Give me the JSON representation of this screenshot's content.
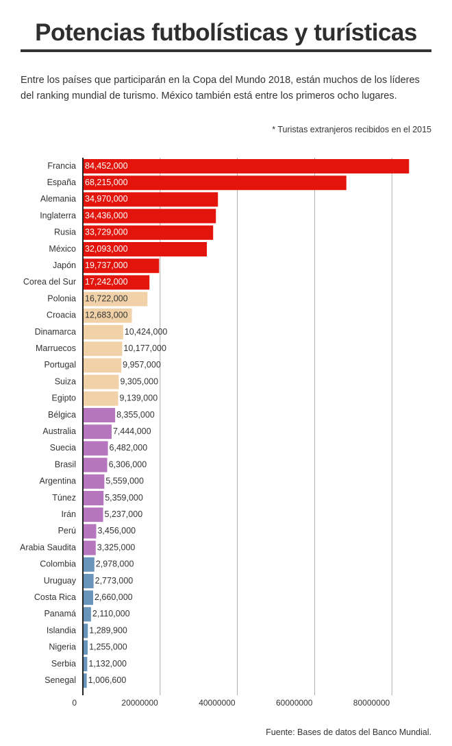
{
  "header": {
    "title": "Potencias futbolísticas y turísticas",
    "intro": "Entre los países que participarán en la Copa del Mundo 2018, están muchos de los líderes del ranking mundial de turismo. México también está entre los primeros ocho lugares.",
    "note": "* Turistas extranjeros recibidos en el 2015"
  },
  "footer": {
    "source": "Fuente: Bases de datos del Banco Mundial."
  },
  "colors": {
    "red": "#e2140c",
    "tan": "#f1d2a8",
    "purple": "#b576bd",
    "blue": "#6a95ba"
  },
  "chart_data": {
    "type": "bar",
    "orientation": "horizontal",
    "title": "",
    "xlabel": "",
    "ylabel": "",
    "xlim": [
      0,
      90000000
    ],
    "x_ticks": [
      0,
      20000000,
      40000000,
      60000000,
      80000000
    ],
    "x_tick_labels": [
      "0",
      "20000000",
      "40000000",
      "60000000",
      "80000000"
    ],
    "grid": "vertical",
    "categories": [
      "Francia",
      "España",
      "Alemania",
      "Inglaterra",
      "Rusia",
      "México",
      "Japón",
      "Corea del Sur",
      "Polonia",
      "Croacia",
      "Dinamarca",
      "Marruecos",
      "Portugal",
      "Suiza",
      "Egipto",
      "Bélgica",
      "Australia",
      "Suecia",
      "Brasil",
      "Argentina",
      "Túnez",
      "Irán",
      "Perú",
      "Arabia Saudita",
      "Colombia",
      "Uruguay",
      "Costa Rica",
      "Panamá",
      "Islandia",
      "Nigeria",
      "Serbia",
      "Senegal"
    ],
    "values": [
      84452000,
      68215000,
      34970000,
      34436000,
      33729000,
      32093000,
      19737000,
      17242000,
      16722000,
      12683000,
      10424000,
      10177000,
      9957000,
      9305000,
      9139000,
      8355000,
      7444000,
      6482000,
      6306000,
      5559000,
      5359000,
      5237000,
      3456000,
      3325000,
      2978000,
      2773000,
      2660000,
      2110000,
      1289900,
      1255000,
      1132000,
      1006600
    ],
    "value_labels": [
      "84,452,000",
      "68,215,000",
      "34,970,000",
      "34,436,000",
      "33,729,000",
      "32,093,000",
      "19,737,000",
      "17,242,000",
      "16,722,000",
      "12,683,000",
      "10,424,000",
      "10,177,000",
      "9,957,000",
      "9,305,000",
      "9,139,000",
      "8,355,000",
      "7,444,000",
      "6,482,000",
      "6,306,000",
      "5,559,000",
      "5,359,000",
      "5,237,000",
      "3,456,000",
      "3,325,000",
      "2,978,000",
      "2,773,000",
      "2,660,000",
      "2,110,000",
      "1,289,900",
      "1,255,000",
      "1,132,000",
      "1,006,600"
    ],
    "bar_colors": [
      "red",
      "red",
      "red",
      "red",
      "red",
      "red",
      "red",
      "red",
      "tan",
      "tan",
      "tan",
      "tan",
      "tan",
      "tan",
      "tan",
      "purple",
      "purple",
      "purple",
      "purple",
      "purple",
      "purple",
      "purple",
      "purple",
      "purple",
      "blue",
      "blue",
      "blue",
      "blue",
      "blue",
      "blue",
      "blue",
      "blue"
    ]
  }
}
